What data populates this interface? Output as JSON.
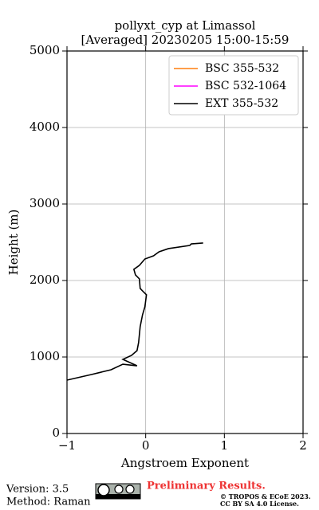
{
  "chart_data": {
    "type": "line",
    "title": "pollyxt_cyp at Limassol",
    "subtitle": "[Averaged] 20230205 15:00-15:59",
    "x_label": "Angstroem Exponent",
    "y_label": "Height (m)",
    "xlim": [
      -1,
      2
    ],
    "xticks": [
      {
        "value": -1,
        "label": "−1"
      },
      0,
      1,
      2
    ],
    "ylim": [
      0,
      5000
    ],
    "yticks": [
      0,
      1000,
      2000,
      3000,
      4000,
      5000
    ],
    "grid": true,
    "legend": "upper right",
    "series": [
      {
        "name": "BSC 355-532",
        "color": "#ff7f0e",
        "x": [],
        "y": []
      },
      {
        "name": "BSC 532-1064",
        "color": "#ff00ff",
        "x": [],
        "y": []
      },
      {
        "name": "EXT 355-532",
        "color": "#000000",
        "x": [
          -1.0,
          -0.69,
          -0.44,
          -0.29,
          -0.11,
          -0.29,
          -0.18,
          -0.11,
          -0.09,
          -0.07,
          -0.04,
          -0.01,
          0.01,
          -0.03,
          -0.07,
          -0.08,
          -0.13,
          -0.15,
          -0.08,
          -0.01,
          0.1,
          0.17,
          0.29,
          0.56,
          0.58,
          0.73
        ],
        "y": [
          698,
          771,
          833,
          906,
          885,
          969,
          1021,
          1083,
          1188,
          1396,
          1552,
          1656,
          1813,
          1854,
          1896,
          2021,
          2073,
          2146,
          2198,
          2281,
          2323,
          2375,
          2417,
          2458,
          2479,
          2490
        ]
      }
    ]
  },
  "footer": {
    "version": "Version: 3.5",
    "method": "Method: Raman",
    "status": "Preliminary Results.",
    "copyright": "© TROPOS & ECoE 2023.",
    "license": "CC BY SA 4.0 License."
  }
}
